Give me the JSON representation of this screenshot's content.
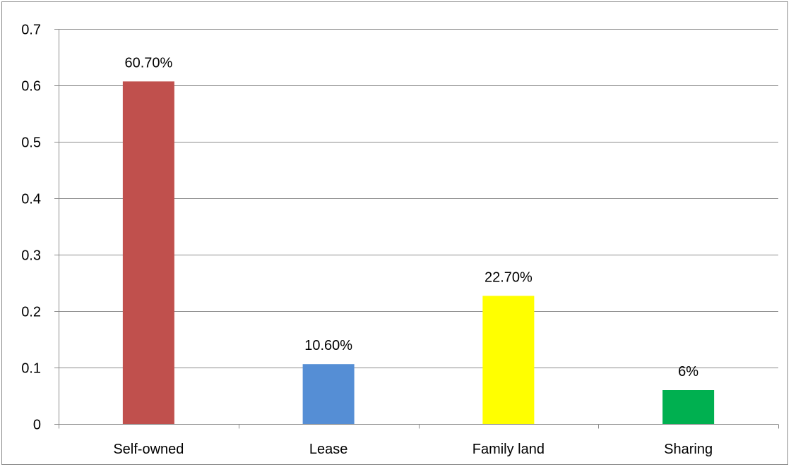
{
  "chart_data": {
    "type": "bar",
    "categories": [
      "Self-owned",
      "Lease",
      "Family land",
      "Sharing"
    ],
    "values": [
      0.607,
      0.106,
      0.227,
      0.06
    ],
    "data_labels": [
      "60.70%",
      "10.60%",
      "22.70%",
      "6%"
    ],
    "colors": [
      "#c0504d",
      "#558ed5",
      "#ffff00",
      "#00b050"
    ],
    "ylim": [
      0,
      0.7
    ],
    "yticks": [
      0,
      0.1,
      0.2,
      0.3,
      0.4,
      0.5,
      0.6,
      0.7
    ],
    "ytick_labels": [
      "0",
      "0.1",
      "0.2",
      "0.3",
      "0.4",
      "0.5",
      "0.6",
      "0.7"
    ],
    "grid": true,
    "legend": "none",
    "gridline_color": "#8c8c8c",
    "axis_color": "#8c8c8c"
  }
}
